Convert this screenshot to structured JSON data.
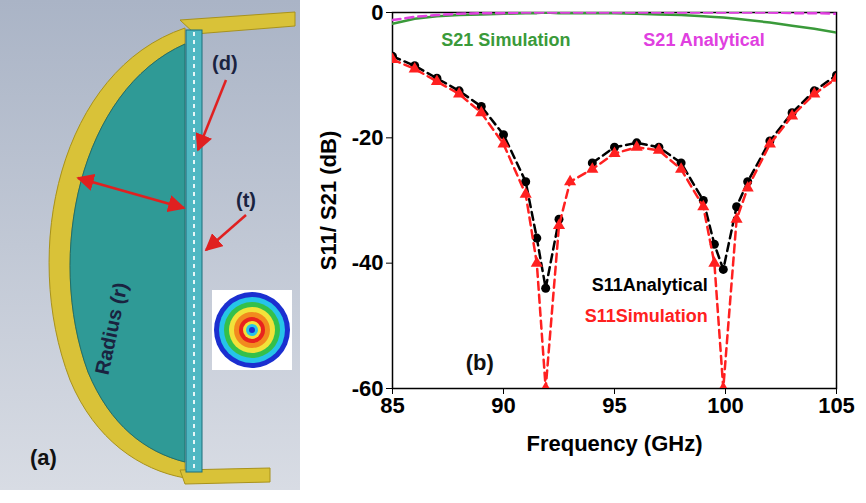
{
  "diagram": {
    "panel_label": "(a)",
    "labels": {
      "d": "(d)",
      "t": "(t)",
      "radius": "Radius (r)"
    }
  },
  "chart_data": {
    "type": "line",
    "panel_label": "(b)",
    "x_label": "Frequency (GHz)",
    "y_label": "S11/ S21 (dB)",
    "x": [
      85,
      86,
      87,
      88,
      89,
      90,
      91,
      91.5,
      91.9,
      92.5,
      93,
      94,
      95,
      96,
      97,
      98,
      99,
      99.5,
      99.9,
      100.5,
      101,
      102,
      103,
      104,
      105
    ],
    "series": [
      {
        "name": "S21 Simulation",
        "color": "#3a9a3a",
        "line_style": "solid",
        "marker": "none",
        "values": [
          -1.8,
          -1,
          -0.6,
          -0.4,
          -0.3,
          -0.2,
          -0.1,
          -0.1,
          0,
          -0.1,
          -0.1,
          -0.1,
          -0.1,
          -0.2,
          -0.3,
          -0.4,
          -0.6,
          -0.7,
          -0.8,
          -1,
          -1.2,
          -1.6,
          -2.1,
          -2.6,
          -3.2
        ]
      },
      {
        "name": "S21 Analytical",
        "color": "#e040e0",
        "line_style": "dashed",
        "marker": "none",
        "values": [
          -1.2,
          -0.7,
          -0.4,
          -0.2,
          -0.1,
          -0.1,
          0,
          0,
          0,
          0,
          0,
          0,
          0,
          0,
          0,
          0,
          0,
          0,
          0,
          0,
          0,
          0,
          -0.1,
          -0.1,
          -0.2
        ]
      },
      {
        "name": "S11Analytical",
        "color": "#000000",
        "line_style": "dashed",
        "marker": "circle",
        "values": [
          -7,
          -8.5,
          -10.5,
          -12.5,
          -15,
          -19.5,
          -27,
          -36,
          -44,
          -33,
          null,
          -24,
          -21.5,
          -20.8,
          -21.5,
          -24,
          -30,
          -37,
          -41,
          -31,
          -27,
          -20.5,
          -16,
          -12.5,
          -10
        ]
      },
      {
        "name": "S11Simulation",
        "color": "#ff2020",
        "line_style": "dashed",
        "marker": "triangle",
        "values": [
          -7.5,
          -9,
          -11,
          -13,
          -16,
          -21,
          -29,
          -40,
          -60,
          -34,
          -27,
          -25,
          -22.5,
          -21.5,
          -22,
          -25,
          -31,
          -40,
          -60,
          -33,
          -28,
          -21,
          -16.5,
          -13,
          -10.5
        ]
      }
    ],
    "xlim": [
      85,
      105
    ],
    "xticks": [
      85,
      90,
      95,
      100,
      105
    ],
    "ylim": [
      -60,
      0
    ],
    "yticks": [
      0,
      -20,
      -40,
      -60
    ]
  }
}
